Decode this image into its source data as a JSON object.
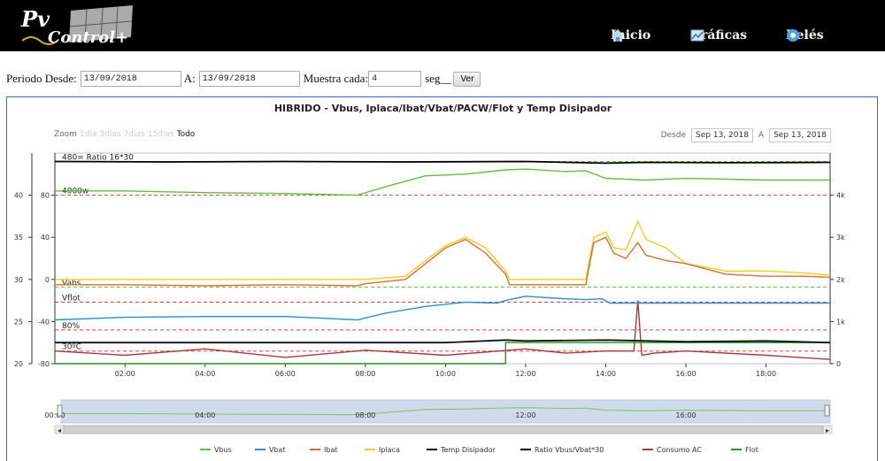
{
  "header": {
    "logo_text": "PvControl+",
    "nav": [
      {
        "label": "Inicio",
        "icon": "home-icon"
      },
      {
        "label": "Gráficas",
        "icon": "chart-icon"
      },
      {
        "label": "Relés",
        "icon": "relay-icon"
      }
    ]
  },
  "filters": {
    "from_label": "Periodo Desde:",
    "from_value": "13/09/2018",
    "to_label": "A:",
    "to_value": "13/09/2018",
    "sample_label": "Muestra cada:",
    "sample_value": "4",
    "unit_label": "seg__",
    "submit_label": "Ver"
  },
  "chart_data": {
    "type": "line",
    "title": "HIBRIDO - Vbus, Iplaca/Ibat/Vbat/PACW/Flot y Temp Disipador",
    "zoom": {
      "label": "Zoom",
      "options": [
        "1día",
        "3días",
        "7días",
        "15días",
        "Todo"
      ],
      "selected": "Todo"
    },
    "range": {
      "from_label": "Desde",
      "from": "Sep 13, 2018",
      "to_label": "A",
      "to": "Sep 13, 2018"
    },
    "x_range_hours": [
      0.25,
      19.6
    ],
    "x_ticks": [
      "02:00",
      "04:00",
      "06:00",
      "08:00",
      "10:00",
      "12:00",
      "14:00",
      "16:00",
      "18:00"
    ],
    "y_axes": {
      "far_left": {
        "ticks": [
          "40",
          "35",
          "30",
          "25",
          "20"
        ],
        "range": [
          20,
          45
        ]
      },
      "left": {
        "ticks": [
          "80",
          "40",
          "0",
          "-40",
          "-80"
        ],
        "range": [
          -80,
          120
        ]
      },
      "right": {
        "ticks": [
          "4k",
          "3k",
          "2k",
          "1k",
          "0"
        ],
        "range": [
          0,
          5000
        ]
      }
    },
    "plot_labels": [
      "480= Ratio 16*30",
      "4000w",
      "Vabs",
      "Vflot",
      "80%",
      "30ºC"
    ],
    "navigator": {
      "ticks": [
        "00:00",
        "04:00",
        "08:00",
        "12:00",
        "16:00"
      ]
    },
    "legend_order": [
      "Vbus",
      "Vbat",
      "Ibat",
      "Iplaca",
      "Temp Disipador",
      "Ratio Vbus/Vbat*30",
      "Consumo AC",
      "Flot"
    ],
    "series": [
      {
        "name": "Vbus",
        "color": "#5fbf3f",
        "x": [
          0.25,
          2,
          4,
          6,
          7.8,
          8.5,
          9.5,
          10.5,
          11.5,
          12,
          13,
          13.5,
          14,
          15,
          16,
          17,
          18,
          19.6
        ],
        "values": [
          40.5,
          40.5,
          40.3,
          40.2,
          40.0,
          41.0,
          42.3,
          42.5,
          43.0,
          43.1,
          42.8,
          42.9,
          42.0,
          41.8,
          42.0,
          41.9,
          41.8,
          41.8
        ]
      },
      {
        "name": "Vbat",
        "color": "#2a8fd1",
        "x": [
          0.25,
          2,
          4,
          6,
          7.8,
          8.5,
          9.5,
          10.5,
          11.3,
          11.5,
          12,
          13,
          13.5,
          13.9,
          14.1,
          15,
          17,
          19.6
        ],
        "values": [
          25.2,
          25.5,
          25.6,
          25.6,
          25.2,
          26.0,
          26.8,
          27.3,
          27.2,
          27.5,
          28.0,
          27.7,
          27.6,
          27.7,
          27.2,
          27.2,
          27.2,
          27.2
        ]
      },
      {
        "name": "Ibat",
        "color": "#e36b2f",
        "x": [
          0.25,
          2,
          4,
          6,
          7.8,
          8,
          9,
          9.5,
          10,
          10.5,
          11,
          11.5,
          11.6,
          12,
          13.5,
          13.7,
          14,
          14.2,
          14.5,
          14.8,
          15,
          15.5,
          16,
          17,
          18,
          19,
          19.6
        ],
        "values": [
          -5,
          -5,
          -6,
          -5,
          -6,
          -4,
          0,
          15,
          30,
          38,
          25,
          5,
          -5,
          -5,
          -5,
          35,
          40,
          25,
          20,
          35,
          23,
          18,
          15,
          5,
          3,
          3,
          2
        ]
      },
      {
        "name": "Iplaca",
        "color": "#e3d21f",
        "x": [
          0.25,
          2,
          4,
          6,
          7.8,
          8,
          9,
          9.5,
          10,
          10.5,
          11,
          11.5,
          11.6,
          12,
          13.5,
          13.7,
          14,
          14.2,
          14.5,
          14.8,
          15,
          15.5,
          16,
          17,
          18,
          19,
          19.6
        ],
        "values": [
          0,
          0,
          0,
          0,
          0,
          0,
          3,
          18,
          32,
          40,
          30,
          8,
          0,
          0,
          0,
          40,
          45,
          30,
          28,
          55,
          38,
          30,
          15,
          8,
          8,
          6,
          4
        ]
      },
      {
        "name": "Temp Disipador",
        "color": "#111111",
        "x": [
          0.25,
          10,
          11.5,
          12,
          14,
          16,
          18,
          19.6
        ],
        "values": [
          22.5,
          22.5,
          22.8,
          22.7,
          22.8,
          22.6,
          22.7,
          22.5
        ]
      },
      {
        "name": "Ratio Vbus/Vbat*30",
        "color": "#000000",
        "x": [
          0.25,
          3,
          6,
          9,
          12,
          14,
          15,
          17,
          19.6
        ],
        "values": [
          4800,
          4790,
          4800,
          4790,
          4800,
          4760,
          4780,
          4770,
          4780
        ]
      },
      {
        "name": "Consumo AC",
        "color": "#a83a3a",
        "x": [
          0.25,
          2,
          4,
          6,
          8,
          10,
          12,
          13,
          14,
          14.7,
          14.8,
          14.9,
          15.2,
          16,
          18,
          19.6
        ],
        "values": [
          300,
          200,
          350,
          150,
          320,
          200,
          350,
          250,
          300,
          300,
          1500,
          200,
          250,
          300,
          200,
          100
        ]
      },
      {
        "name": "Flot",
        "color": "#1f9b1f",
        "x": [
          0.25,
          11.5,
          11.5,
          19.6
        ],
        "values": [
          0,
          0,
          500,
          500
        ]
      }
    ]
  }
}
